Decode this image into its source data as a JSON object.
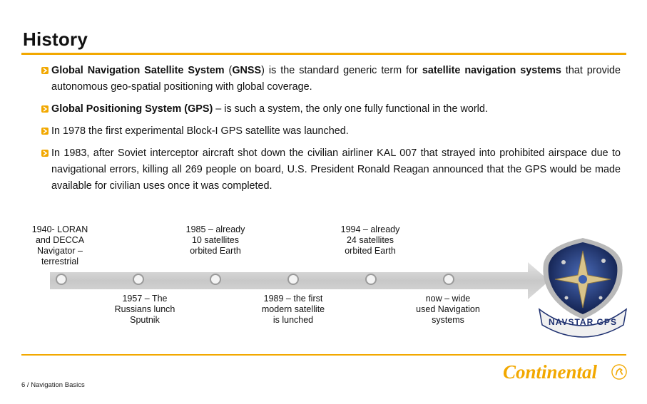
{
  "title": "History",
  "bullets": [
    {
      "parts": [
        {
          "text": "Global Navigation Satellite System",
          "bold": true
        },
        {
          "text": " (",
          "bold": false
        },
        {
          "text": "GNSS",
          "bold": true
        },
        {
          "text": ") is the standard generic term for ",
          "bold": false
        },
        {
          "text": "satellite navigation systems",
          "bold": true
        },
        {
          "text": " that provide autonomous geo-spatial positioning with global coverage.",
          "bold": false
        }
      ]
    },
    {
      "parts": [
        {
          "text": "Global Positioning System (GPS)",
          "bold": true
        },
        {
          "text": " – is such a system, the only one fully functional in the world.",
          "bold": false
        }
      ]
    },
    {
      "parts": [
        {
          "text": "In 1978 the first experimental Block-I GPS satellite was launched.",
          "bold": false
        }
      ]
    },
    {
      "parts": [
        {
          "text": "In 1983, after Soviet interceptor aircraft shot down the civilian airliner KAL 007 that strayed into prohibited airspace due to navigational errors, killing all 269 people on board, U.S. President Ronald Reagan announced that the GPS would be made available for civilian uses once it was completed.",
          "bold": false
        }
      ]
    }
  ],
  "timeline": {
    "above": [
      {
        "text": "1940- LORAN and DECCA Navigator – terrestrial"
      },
      {
        "text": "1985 – already 10 satellites orbited Earth"
      },
      {
        "text": "1994 – already 24 satellites orbited Earth"
      }
    ],
    "below": [
      {
        "text": "1957 – The Russians lunch Sputnik"
      },
      {
        "text": "1989 – the first modern satellite is lunched"
      },
      {
        "text": "now – wide used Navigation systems"
      }
    ]
  },
  "emblem": {
    "text": "NAVSTAR GPS"
  },
  "footer": {
    "text": "6 / Navigation Basics"
  },
  "logo": {
    "text": "Continental"
  },
  "colors": {
    "accent": "#f2a800",
    "arrow": "#cfcfcf",
    "emblem_blue": "#1d2f6f"
  }
}
